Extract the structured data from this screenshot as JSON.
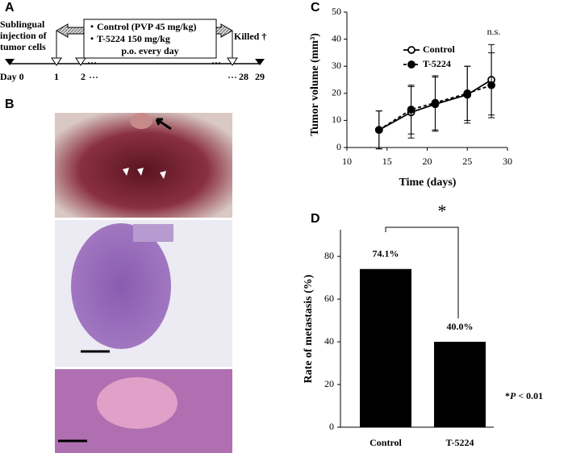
{
  "panel_labels": [
    "A",
    "B",
    "C",
    "D"
  ],
  "timeline": {
    "injection_label": [
      "Sublingual",
      "injection of",
      "tumor cells"
    ],
    "day_labels": [
      "Day 0",
      "1",
      "2",
      "28",
      "29"
    ],
    "killed_label": "Killed †",
    "treatment": [
      "・Control (PVP 45 mg/kg)",
      "・T-5224 150 mg/kg",
      "p.o. every day"
    ]
  },
  "chart_data": [
    {
      "type": "line",
      "x_label": "Time (days)",
      "y_label": "Tumor volume (mm³)",
      "annotation": "n.s.",
      "x": [
        14,
        18,
        21,
        25,
        28
      ],
      "series": [
        {
          "name": "Control",
          "color": "#000000",
          "dash": false,
          "marker": "open",
          "values": [
            6.5,
            13,
            16,
            19.5,
            25
          ],
          "errors": [
            7,
            9.5,
            10,
            10.5,
            13
          ]
        },
        {
          "name": "T-5224",
          "color": "#000000",
          "dash": true,
          "marker": "filled",
          "values": [
            6.5,
            14,
            16.5,
            20,
            23
          ],
          "errors": [
            7,
            9,
            10,
            10,
            12
          ]
        }
      ],
      "xlim": [
        10,
        30
      ],
      "xticks": [
        10,
        15,
        20,
        25,
        30
      ],
      "ylim": [
        0,
        50
      ],
      "yticks": [
        0,
        10,
        20,
        30,
        40,
        50
      ],
      "legend": "upper right"
    },
    {
      "type": "bar",
      "y_label": "Rate of metastasis (%)",
      "categories": [
        "Control",
        "T-5224"
      ],
      "values": [
        74.1,
        40.0
      ],
      "value_labels": [
        "74.1%",
        "40.0%"
      ],
      "color": "#000000",
      "ylim": [
        0,
        92.5
      ],
      "yticks": [
        0,
        20,
        40,
        60,
        80
      ],
      "significance": "*",
      "footnote": [
        "*",
        "P",
        " < 0.01"
      ]
    }
  ]
}
